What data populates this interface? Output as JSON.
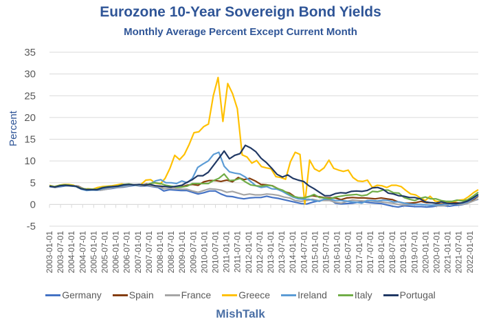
{
  "chart_data": {
    "type": "line",
    "title": "Eurozone 10-Year Sovereign Bond Yields",
    "subtitle": "Monthly Average Percent Except Current Month",
    "xlabel": "",
    "ylabel": "Percent",
    "ylim": [
      -5,
      35
    ],
    "yticks": [
      35,
      30,
      25,
      20,
      15,
      10,
      5,
      0,
      -5
    ],
    "grid": true,
    "legend_position": "bottom",
    "x_start": "2003-01",
    "x_step_months": 3,
    "x_end": "2022-04",
    "xtick_labels": [
      "2003-01-01",
      "2003-07-01",
      "2004-01-01",
      "2004-07-01",
      "2005-01-01",
      "2005-07-01",
      "2006-01-01",
      "2006-07-01",
      "2007-01-01",
      "2007-07-01",
      "2008-01-01",
      "2008-07-01",
      "2009-01-01",
      "2009-07-01",
      "2010-01-01",
      "2010-07-01",
      "2011-01-01",
      "2011-07-01",
      "2012-01-01",
      "2012-07-01",
      "2013-01-01",
      "2013-07-01",
      "2014-01-01",
      "2014-07-01",
      "2015-01-01",
      "2015-07-01",
      "2016-01-01",
      "2016-07-01",
      "2017-01-01",
      "2017-07-01",
      "2018-01-01",
      "2018-07-01",
      "2019-01-01",
      "2019-07-01",
      "2020-01-01",
      "2020-07-01",
      "2021-01-01",
      "2021-07-01",
      "2022-01-01"
    ],
    "series": [
      {
        "name": "Germany",
        "color": "#4472c4",
        "values": [
          4.1,
          3.9,
          4.1,
          4.3,
          4.2,
          4.1,
          3.6,
          3.4,
          3.3,
          3.3,
          3.5,
          3.7,
          3.9,
          4.0,
          4.2,
          4.4,
          4.2,
          4.3,
          4.1,
          3.9,
          3.1,
          3.4,
          3.3,
          3.2,
          3.2,
          2.8,
          2.4,
          2.7,
          3.1,
          3.1,
          2.4,
          1.9,
          1.8,
          1.5,
          1.3,
          1.5,
          1.6,
          1.6,
          1.9,
          1.6,
          1.4,
          1.1,
          0.8,
          0.5,
          0.2,
          0.1,
          0.5,
          0.8,
          1.1,
          1.2,
          0.3,
          0.1,
          0.2,
          0.3,
          0.5,
          0.6,
          0.4,
          0.3,
          0.2,
          -0.1,
          -0.4,
          -0.6,
          -0.3,
          -0.4,
          -0.5,
          -0.5,
          -0.6,
          -0.5,
          -0.3,
          -0.3,
          -0.4,
          -0.2,
          -0.1,
          0.2,
          0.8,
          1.2
        ]
      },
      {
        "name": "Spain",
        "color": "#843c0c",
        "values": [
          4.2,
          4.0,
          4.3,
          4.4,
          4.3,
          4.2,
          3.6,
          3.4,
          3.4,
          3.3,
          3.7,
          3.9,
          4.0,
          4.1,
          4.4,
          4.5,
          4.4,
          4.7,
          4.4,
          4.1,
          4.1,
          4.2,
          4.0,
          4.0,
          4.4,
          4.6,
          4.4,
          5.2,
          5.5,
          5.5,
          5.3,
          5.6,
          5.2,
          6.2,
          5.7,
          6.0,
          5.4,
          4.6,
          4.5,
          4.3,
          3.6,
          3.0,
          2.6,
          1.7,
          1.4,
          1.7,
          2.0,
          1.8,
          1.6,
          1.5,
          1.5,
          1.1,
          1.5,
          1.6,
          1.5,
          1.5,
          1.4,
          1.3,
          1.5,
          1.3,
          1.1,
          0.6,
          0.3,
          0.3,
          0.4,
          0.7,
          0.4,
          0.4,
          0.1,
          0.1,
          0.4,
          0.4,
          0.3,
          0.5,
          1.0,
          1.9
        ]
      },
      {
        "name": "France",
        "color": "#a5a5a5",
        "values": [
          4.2,
          3.9,
          4.2,
          4.3,
          4.3,
          4.1,
          3.6,
          3.4,
          3.3,
          3.3,
          3.5,
          3.8,
          4.0,
          4.1,
          4.3,
          4.5,
          4.3,
          4.4,
          4.2,
          4.1,
          3.6,
          3.7,
          3.6,
          3.5,
          3.5,
          3.1,
          2.8,
          3.2,
          3.6,
          3.5,
          3.3,
          2.8,
          3.0,
          2.6,
          2.2,
          2.4,
          2.2,
          2.2,
          2.4,
          2.3,
          2.1,
          1.7,
          1.5,
          0.9,
          0.7,
          0.9,
          1.2,
          0.9,
          0.9,
          0.9,
          0.5,
          0.3,
          0.7,
          1.0,
          0.9,
          0.8,
          0.8,
          0.7,
          0.6,
          0.4,
          0.3,
          0.0,
          -0.1,
          0.0,
          0.0,
          0.0,
          -0.1,
          -0.2,
          -0.3,
          -0.3,
          0.1,
          0.1,
          0.0,
          0.2,
          0.7,
          1.3
        ]
      },
      {
        "name": "Greece",
        "color": "#ffc000",
        "values": [
          4.4,
          4.1,
          4.4,
          4.6,
          4.6,
          4.4,
          3.8,
          3.5,
          3.6,
          3.5,
          3.9,
          4.1,
          4.2,
          4.3,
          4.5,
          4.7,
          4.5,
          4.6,
          4.4,
          4.6,
          5.6,
          5.7,
          4.9,
          4.7,
          6.0,
          8.3,
          11.3,
          10.3,
          11.5,
          13.8,
          16.5,
          16.7,
          17.9,
          18.5,
          25.0,
          29.2,
          19.1,
          27.8,
          25.5,
          22.0,
          11.4,
          10.9,
          9.5,
          10.1,
          8.7,
          8.4,
          8.2,
          6.4,
          6.2,
          5.8,
          9.8,
          12.0,
          11.5,
          0.1,
          10.2,
          8.2,
          7.6,
          8.4,
          10.2,
          8.3,
          7.9,
          7.6,
          7.9,
          6.2,
          5.4,
          5.3,
          5.6,
          3.9,
          4.4,
          4.3,
          3.9,
          4.4,
          4.4,
          4.1,
          3.2,
          2.4,
          2.2,
          1.5,
          0.9,
          1.9,
          0.8,
          0.6,
          0.6,
          0.6,
          0.7,
          1.0,
          1.1,
          1.8,
          2.7,
          3.4
        ]
      },
      {
        "name": "Ireland",
        "color": "#5b9bd5",
        "values": [
          4.2,
          4.0,
          4.2,
          4.3,
          4.3,
          4.1,
          3.5,
          3.2,
          3.3,
          3.3,
          3.6,
          3.9,
          4.0,
          4.1,
          4.3,
          4.5,
          4.4,
          4.5,
          4.5,
          4.7,
          5.4,
          5.7,
          5.0,
          5.0,
          4.8,
          5.4,
          5.0,
          6.0,
          8.5,
          9.3,
          10.0,
          11.5,
          12.0,
          8.8,
          7.5,
          7.2,
          7.0,
          6.3,
          5.3,
          4.3,
          3.9,
          4.1,
          3.6,
          3.5,
          3.0,
          2.3,
          1.7,
          1.3,
          1.2,
          1.2,
          0.9,
          0.7,
          1.3,
          1.3,
          0.9,
          0.9,
          0.8,
          0.6,
          0.5,
          0.3,
          0.9,
          0.9,
          0.8,
          1.0,
          0.9,
          0.6,
          0.6,
          0.3,
          0.1,
          0.0,
          0.0,
          -0.1,
          -0.2,
          -0.1,
          -0.1,
          0.1,
          0.1,
          0.2,
          0.3,
          0.6,
          1.3,
          2.1
        ]
      },
      {
        "name": "Italy",
        "color": "#70ad47",
        "values": [
          4.3,
          4.1,
          4.4,
          4.5,
          4.4,
          4.2,
          3.7,
          3.5,
          3.5,
          3.5,
          3.9,
          4.1,
          4.1,
          4.3,
          4.6,
          4.7,
          4.5,
          4.6,
          4.4,
          4.8,
          5.0,
          4.8,
          4.4,
          4.2,
          4.0,
          4.0,
          4.2,
          4.8,
          4.8,
          4.8,
          4.8,
          5.5,
          6.0,
          7.0,
          5.5,
          5.6,
          6.0,
          5.2,
          4.5,
          4.3,
          4.2,
          4.4,
          4.3,
          3.7,
          3.3,
          2.6,
          1.9,
          1.6,
          1.5,
          1.8,
          2.3,
          1.6,
          1.5,
          1.3,
          1.7,
          1.9,
          2.1,
          2.2,
          2.3,
          2.0,
          2.2,
          3.0,
          2.9,
          3.3,
          3.3,
          2.7,
          2.6,
          1.6,
          1.2,
          0.9,
          1.4,
          1.7,
          1.3,
          1.3,
          0.9,
          0.7,
          0.7,
          1.0,
          0.8,
          1.1,
          1.9,
          2.8
        ]
      },
      {
        "name": "Portugal",
        "color": "#203864",
        "values": [
          4.2,
          4.0,
          4.3,
          4.4,
          4.3,
          4.2,
          3.6,
          3.4,
          3.4,
          3.4,
          3.8,
          4.0,
          4.1,
          4.2,
          4.5,
          4.6,
          4.5,
          4.6,
          4.4,
          4.6,
          4.3,
          4.2,
          4.1,
          4.0,
          4.2,
          4.4,
          5.1,
          5.7,
          6.6,
          6.6,
          7.4,
          9.0,
          10.6,
          12.3,
          10.5,
          11.3,
          11.7,
          13.6,
          13.0,
          12.1,
          10.6,
          9.6,
          8.3,
          6.9,
          6.3,
          6.8,
          6.0,
          5.6,
          5.3,
          4.3,
          3.6,
          2.8,
          2.0,
          2.0,
          2.5,
          2.7,
          2.6,
          3.0,
          3.1,
          3.0,
          3.2,
          3.8,
          3.9,
          3.5,
          2.6,
          2.4,
          2.0,
          1.9,
          1.6,
          1.6,
          1.3,
          0.6,
          0.4,
          0.3,
          0.6,
          0.3,
          0.2,
          0.2,
          0.4,
          0.8,
          1.5,
          2.3
        ]
      }
    ]
  },
  "legend": [
    {
      "label": "Germany",
      "color": "#4472c4"
    },
    {
      "label": "Spain",
      "color": "#843c0c"
    },
    {
      "label": "France",
      "color": "#a5a5a5"
    },
    {
      "label": "Greece",
      "color": "#ffc000"
    },
    {
      "label": "Ireland",
      "color": "#5b9bd5"
    },
    {
      "label": "Italy",
      "color": "#70ad47"
    },
    {
      "label": "Portugal",
      "color": "#203864"
    }
  ],
  "footer": "MishTalk"
}
